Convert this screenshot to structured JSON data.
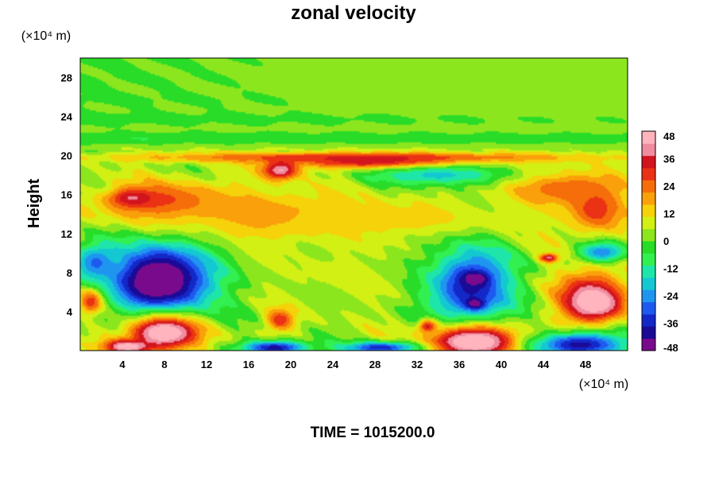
{
  "chart_data": {
    "type": "heatmap",
    "title": "zonal velocity",
    "ylabel": "Height",
    "y_units": "(×10⁴ m)",
    "x_units": "(×10⁴ m)",
    "footer": "TIME = 1015200.0",
    "xlim": [
      0,
      52
    ],
    "ylim": [
      0,
      30
    ],
    "x_ticks": [
      "4",
      "8",
      "12",
      "16",
      "20",
      "24",
      "28",
      "32",
      "36",
      "40",
      "44",
      "48"
    ],
    "x_tick_values": [
      4,
      8,
      12,
      16,
      20,
      24,
      28,
      32,
      36,
      40,
      44,
      48
    ],
    "y_ticks": [
      "4",
      "8",
      "12",
      "16",
      "20",
      "24",
      "28"
    ],
    "y_tick_values": [
      4,
      8,
      12,
      16,
      20,
      24,
      28
    ],
    "colorbar": {
      "min": -48,
      "max": 48,
      "tick_labels": [
        "48",
        "36",
        "24",
        "12",
        "0",
        "-12",
        "-24",
        "-36",
        "-48"
      ],
      "tick_values": [
        48,
        36,
        24,
        12,
        0,
        -12,
        -24,
        -36,
        -48
      ],
      "colors": [
        "#7a0a8c",
        "#1a0a96",
        "#1428c8",
        "#1e5af0",
        "#1e96f0",
        "#14c8d2",
        "#1ee6aa",
        "#32f050",
        "#28dc28",
        "#8ce61e",
        "#d2f014",
        "#f5d20a",
        "#faa00a",
        "#f56e0a",
        "#eb3214",
        "#d2141e",
        "#f08ca0",
        "#ffb4be"
      ]
    },
    "field_features": [
      {
        "x": 52,
        "y": 28,
        "rx": 60,
        "ry": 8,
        "value": 2
      },
      {
        "x": 26,
        "y": 19.8,
        "rx": 26,
        "ry": 0.6,
        "value": 28
      },
      {
        "x": 29,
        "y": 19.3,
        "rx": 9,
        "ry": 0.8,
        "value": 40
      },
      {
        "x": 19,
        "y": 18.5,
        "rx": 2,
        "ry": 1.2,
        "value": 44
      },
      {
        "x": 46,
        "y": 16.6,
        "rx": 6,
        "ry": 2,
        "value": 26
      },
      {
        "x": 8,
        "y": 15.2,
        "rx": 7,
        "ry": 2.4,
        "value": 30
      },
      {
        "x": 5,
        "y": 15.6,
        "rx": 2.3,
        "ry": 1,
        "value": 40
      },
      {
        "x": 18,
        "y": 13.8,
        "rx": 10,
        "ry": 2.8,
        "value": 22
      },
      {
        "x": 30,
        "y": 13.4,
        "rx": 16,
        "ry": 2.2,
        "value": 14
      },
      {
        "x": 49,
        "y": 14.5,
        "rx": 3,
        "ry": 2.8,
        "value": 30
      },
      {
        "x": 34,
        "y": 18,
        "rx": 7,
        "ry": 1.2,
        "value": -18
      },
      {
        "x": 8,
        "y": 7.2,
        "rx": 5.8,
        "ry": 4.2,
        "value": -46
      },
      {
        "x": 7.2,
        "y": 7.2,
        "rx": 3.2,
        "ry": 2.7,
        "value": -50
      },
      {
        "x": 1.5,
        "y": 9,
        "rx": 2.5,
        "ry": 2.2,
        "value": -28
      },
      {
        "x": 37,
        "y": 6.6,
        "rx": 4.6,
        "ry": 4.6,
        "value": -40
      },
      {
        "x": 37.5,
        "y": 7.4,
        "rx": 1.4,
        "ry": 0.8,
        "value": -50
      },
      {
        "x": 37.5,
        "y": 4.8,
        "rx": 1,
        "ry": 0.6,
        "value": -50
      },
      {
        "x": 49.5,
        "y": 10,
        "rx": 2.5,
        "ry": 1.2,
        "value": -30
      },
      {
        "x": 44.5,
        "y": 9.5,
        "rx": 1,
        "ry": 0.5,
        "value": 40
      },
      {
        "x": 48.5,
        "y": 5.4,
        "rx": 3.6,
        "ry": 3.2,
        "value": 42
      },
      {
        "x": 49,
        "y": 4.9,
        "rx": 2.4,
        "ry": 1.5,
        "value": 50
      },
      {
        "x": 8,
        "y": 1.8,
        "rx": 4.2,
        "ry": 2.3,
        "value": 38
      },
      {
        "x": 8,
        "y": 1.8,
        "rx": 2.6,
        "ry": 1.2,
        "value": 50
      },
      {
        "x": 4.5,
        "y": 0.4,
        "rx": 2.5,
        "ry": 0.8,
        "value": 50
      },
      {
        "x": 37.5,
        "y": 1,
        "rx": 5,
        "ry": 2,
        "value": 40
      },
      {
        "x": 37.5,
        "y": 0.8,
        "rx": 3.6,
        "ry": 1.2,
        "value": 50
      },
      {
        "x": 47.5,
        "y": 0.6,
        "rx": 5,
        "ry": 1.5,
        "value": -40
      },
      {
        "x": 18.5,
        "y": 0.3,
        "rx": 3.5,
        "ry": 0.8,
        "value": -40
      },
      {
        "x": 28.5,
        "y": 0.3,
        "rx": 4,
        "ry": 0.7,
        "value": -36
      },
      {
        "x": 19,
        "y": 3.2,
        "rx": 1.5,
        "ry": 1.3,
        "value": 34
      },
      {
        "x": 33,
        "y": 2.5,
        "rx": 1,
        "ry": 0.8,
        "value": 34
      },
      {
        "x": 1,
        "y": 5,
        "rx": 1.2,
        "ry": 1.4,
        "value": 30
      },
      {
        "x": 24,
        "y": 8,
        "rx": 8,
        "ry": 4,
        "value": 6
      }
    ]
  }
}
